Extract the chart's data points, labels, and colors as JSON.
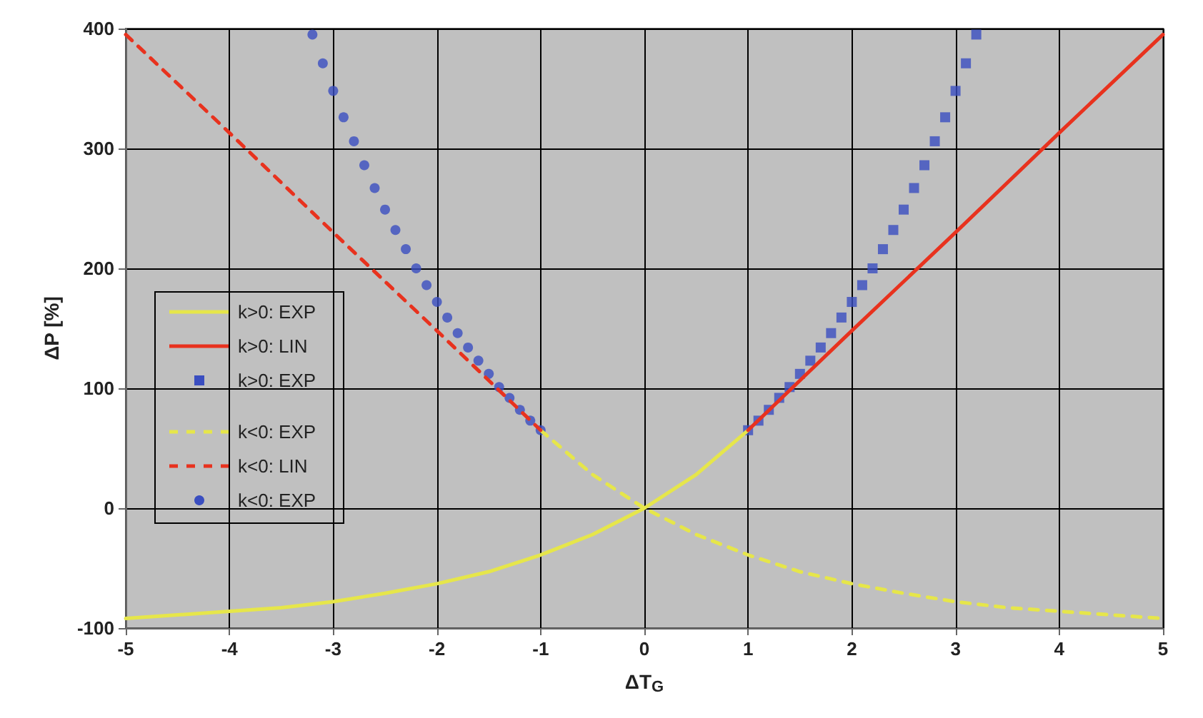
{
  "chart_data": {
    "type": "line",
    "xlabel": "ΔT$_{G}$",
    "ylabel": "ΔP [%]",
    "xlim": [
      -5,
      5
    ],
    "xticks": [
      -5,
      -4,
      -3,
      -2,
      -1,
      0,
      1,
      2,
      3,
      4,
      5
    ],
    "ylim": [
      -100,
      400
    ],
    "yticks": [
      -100,
      0,
      100,
      200,
      300,
      400
    ],
    "grid": true,
    "legend": "left",
    "series": [
      {
        "name": "k>0: EXP",
        "color": "#e6e64a",
        "marker": "none",
        "line_style": "solid",
        "x": [
          -5,
          -4.5,
          -4,
          -3.5,
          -3,
          -2.5,
          -2,
          -1.5,
          -1,
          -0.5,
          0,
          0.5,
          1
        ],
        "values": [
          -92,
          -89,
          -86,
          -83,
          -78,
          -71,
          -63,
          -53,
          -39,
          -22,
          0,
          28,
          65
        ]
      },
      {
        "name": "k>0: LIN",
        "color": "#e8321e",
        "marker": "none",
        "line_style": "solid",
        "x": [
          1,
          2,
          3,
          4,
          5
        ],
        "values": [
          65,
          148,
          230,
          313,
          395
        ]
      },
      {
        "name": "k>0: EXP",
        "type": "scatter",
        "color": "#3a4ec0",
        "marker": "square",
        "x": [
          1,
          1.1,
          1.2,
          1.3,
          1.4,
          1.5,
          1.6,
          1.7,
          1.8,
          1.9,
          2,
          2.1,
          2.2,
          2.3,
          2.4,
          2.5,
          2.6,
          2.7,
          2.8,
          2.9,
          3,
          3.1,
          3.2
        ],
        "values": [
          65,
          73,
          82,
          92,
          101,
          112,
          123,
          134,
          146,
          159,
          172,
          186,
          200,
          216,
          232,
          249,
          267,
          286,
          306,
          326,
          348,
          371,
          395
        ]
      },
      {
        "name": "k<0: EXP",
        "color": "#e6e64a",
        "marker": "none",
        "line_style": "dashed",
        "x": [
          -1,
          -0.5,
          0,
          0.5,
          1,
          1.5,
          2,
          2.5,
          3,
          3.5,
          4,
          4.5,
          5
        ],
        "values": [
          65,
          28,
          0,
          -22,
          -39,
          -53,
          -63,
          -71,
          -78,
          -83,
          -86,
          -89,
          -92
        ]
      },
      {
        "name": "k<0: LIN",
        "color": "#e8321e",
        "marker": "none",
        "line_style": "dashed",
        "x": [
          -5,
          -4,
          -3,
          -2,
          -1
        ],
        "values": [
          395,
          313,
          230,
          148,
          65
        ]
      },
      {
        "name": "k<0: EXP",
        "type": "scatter",
        "color": "#3a4ec0",
        "marker": "circle",
        "x": [
          -3.2,
          -3.1,
          -3,
          -2.9,
          -2.8,
          -2.7,
          -2.6,
          -2.5,
          -2.4,
          -2.3,
          -2.2,
          -2.1,
          -2,
          -1.9,
          -1.8,
          -1.7,
          -1.6,
          -1.5,
          -1.4,
          -1.3,
          -1.2,
          -1.1,
          -1
        ],
        "values": [
          395,
          371,
          348,
          326,
          306,
          286,
          267,
          249,
          232,
          216,
          200,
          186,
          172,
          159,
          146,
          134,
          123,
          112,
          101,
          92,
          82,
          73,
          65
        ]
      }
    ]
  }
}
